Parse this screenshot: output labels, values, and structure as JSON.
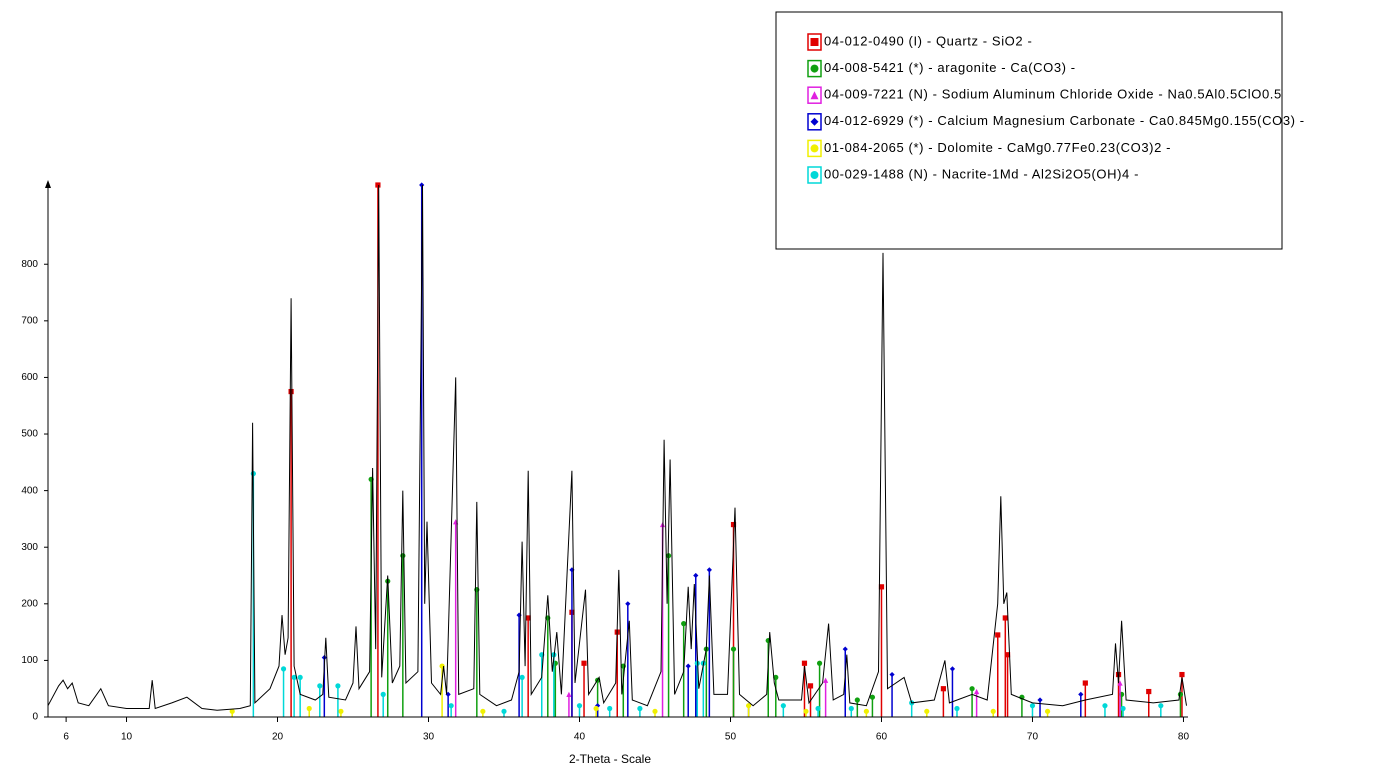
{
  "chart_data": {
    "type": "xrd",
    "x_label": "2-Theta - Scale",
    "xlim": [
      4.8,
      80.3
    ],
    "ylim": [
      0,
      940
    ],
    "xticks": [
      6,
      10,
      20,
      30,
      40,
      50,
      60,
      70,
      80
    ],
    "yticks": [
      0,
      100,
      200,
      300,
      400,
      500,
      600,
      700,
      800
    ],
    "pattern": {
      "color": "#000000",
      "x": [
        4.8,
        5.5,
        5.8,
        6.1,
        6.4,
        6.8,
        7.5,
        8.3,
        8.8,
        10,
        11.5,
        11.7,
        11.9,
        13,
        14,
        15,
        16,
        17.5,
        18.2,
        18.35,
        18.5,
        19.5,
        20.1,
        20.3,
        20.5,
        20.7,
        20.9,
        21.1,
        21.5,
        22.5,
        23.0,
        23.2,
        23.4,
        24.5,
        25.0,
        25.2,
        25.4,
        26.1,
        26.3,
        26.5,
        26.7,
        26.9,
        27.3,
        27.6,
        28.1,
        28.3,
        28.5,
        29.3,
        29.6,
        29.75,
        29.9,
        30.2,
        30.8,
        31.0,
        31.2,
        31.8,
        32.0,
        33.0,
        33.2,
        33.4,
        34.5,
        35.5,
        36.0,
        36.2,
        36.4,
        36.6,
        36.8,
        37.5,
        37.9,
        38.2,
        38.5,
        38.8,
        39.5,
        39.7,
        40.4,
        40.6,
        41.3,
        41.6,
        42.4,
        42.6,
        42.8,
        43.3,
        43.5,
        44.5,
        45.4,
        45.6,
        45.8,
        46.0,
        46.3,
        46.9,
        47.2,
        47.4,
        47.6,
        47.9,
        48.4,
        48.6,
        48.9,
        49.8,
        50.3,
        50.6,
        51.5,
        52.4,
        52.6,
        52.9,
        53.2,
        54.7,
        54.9,
        55.2,
        56.1,
        56.5,
        56.8,
        57.5,
        57.7,
        57.9,
        59.0,
        59.8,
        60.1,
        60.4,
        61.5,
        62.0,
        63.5,
        64.2,
        64.5,
        66.0,
        67.0,
        67.7,
        67.9,
        68.1,
        68.3,
        68.6,
        70.0,
        72.0,
        73.5,
        75.3,
        75.5,
        75.7,
        75.9,
        76.2,
        78.0,
        79.7,
        79.9,
        80.2
      ],
      "values": [
        20,
        55,
        65,
        50,
        60,
        25,
        20,
        50,
        20,
        15,
        15,
        65,
        15,
        25,
        35,
        15,
        12,
        15,
        20,
        520,
        25,
        50,
        90,
        180,
        110,
        140,
        740,
        90,
        40,
        30,
        40,
        140,
        35,
        30,
        60,
        160,
        50,
        80,
        440,
        120,
        940,
        70,
        250,
        60,
        90,
        400,
        60,
        80,
        940,
        200,
        345,
        60,
        40,
        90,
        40,
        600,
        40,
        50,
        380,
        40,
        20,
        30,
        80,
        310,
        90,
        435,
        40,
        70,
        215,
        80,
        150,
        40,
        435,
        60,
        225,
        40,
        70,
        25,
        60,
        260,
        40,
        170,
        30,
        20,
        80,
        490,
        200,
        455,
        40,
        80,
        230,
        120,
        235,
        50,
        120,
        250,
        40,
        40,
        370,
        40,
        20,
        40,
        150,
        60,
        30,
        30,
        90,
        25,
        60,
        165,
        30,
        40,
        110,
        25,
        20,
        80,
        820,
        50,
        70,
        25,
        30,
        100,
        25,
        40,
        30,
        200,
        390,
        200,
        220,
        40,
        25,
        20,
        30,
        40,
        130,
        60,
        170,
        30,
        25,
        30,
        70,
        20
      ]
    },
    "series": [
      {
        "name": "04-012-0490 (I) - Quartz - SiO2 -",
        "color": "#e00000",
        "marker": "square",
        "x": [
          20.9,
          26.65,
          36.6,
          39.5,
          40.3,
          42.5,
          50.2,
          54.9,
          55.3,
          60.0,
          64.1,
          67.7,
          68.2,
          68.35,
          73.5,
          75.7,
          77.7,
          79.9
        ],
        "values": [
          575,
          940,
          175,
          185,
          95,
          150,
          340,
          95,
          55,
          230,
          50,
          145,
          175,
          110,
          60,
          75,
          45,
          75
        ]
      },
      {
        "name": "04-008-5421 (*) - aragonite - Ca(CO3) -",
        "color": "#10a010",
        "marker": "circle",
        "x": [
          26.2,
          27.3,
          28.3,
          33.2,
          37.9,
          38.4,
          41.2,
          42.9,
          45.9,
          46.9,
          48.4,
          50.2,
          52.5,
          53.0,
          55.9,
          58.4,
          59.4,
          66.0,
          69.3,
          75.9,
          79.8
        ],
        "values": [
          420,
          240,
          285,
          225,
          175,
          95,
          65,
          90,
          285,
          165,
          120,
          120,
          135,
          70,
          95,
          30,
          35,
          50,
          35,
          40,
          40
        ]
      },
      {
        "name": "04-009-7221 (N) - Sodium Aluminum Chloride Oxide - Na0.5Al0.5ClO0.5",
        "color": "#e020e0",
        "marker": "triangle",
        "x": [
          31.8,
          39.3,
          45.5,
          56.3,
          66.3,
          75.8
        ],
        "values": [
          345,
          40,
          340,
          65,
          45,
          60
        ]
      },
      {
        "name": "04-012-6929 (*) - Calcium Magnesium Carbonate - Ca0.845Mg0.155(CO3) -",
        "color": "#0000d0",
        "marker": "diamond",
        "x": [
          23.1,
          29.55,
          31.3,
          36.0,
          39.5,
          41.2,
          43.2,
          47.2,
          47.7,
          48.6,
          51.2,
          57.6,
          60.7,
          64.7,
          70.5,
          73.2
        ],
        "values": [
          105,
          940,
          40,
          180,
          260,
          20,
          200,
          90,
          250,
          260,
          20,
          120,
          75,
          85,
          30,
          40
        ]
      },
      {
        "name": "01-084-2065 (*) - Dolomite - CaMg0.77Fe0.23(CO3)2 -",
        "color": "#f0f000",
        "marker": "circle",
        "x": [
          17.0,
          22.1,
          24.2,
          30.9,
          33.6,
          41.1,
          45.0,
          51.2,
          55.0,
          59.0,
          63.0,
          67.4,
          71.0
        ],
        "values": [
          10,
          15,
          10,
          90,
          10,
          15,
          10,
          20,
          10,
          10,
          10,
          10,
          10
        ]
      },
      {
        "name": "00-029-1488 (N) - Nacrite-1Md - Al2Si2O5(OH)4 -",
        "color": "#00d8d8",
        "marker": "circle",
        "x": [
          18.4,
          20.4,
          21.1,
          21.5,
          22.8,
          24.0,
          27.0,
          31.5,
          35.0,
          36.2,
          37.5,
          38.3,
          40.0,
          42.0,
          44.0,
          47.8,
          48.2,
          53.5,
          55.8,
          58.0,
          62.0,
          65.0,
          70.0,
          74.8,
          76.0,
          78.5
        ],
        "values": [
          430,
          85,
          70,
          70,
          55,
          55,
          40,
          20,
          10,
          70,
          110,
          110,
          20,
          15,
          15,
          95,
          95,
          20,
          15,
          15,
          25,
          15,
          20,
          20,
          15,
          20
        ]
      }
    ]
  }
}
